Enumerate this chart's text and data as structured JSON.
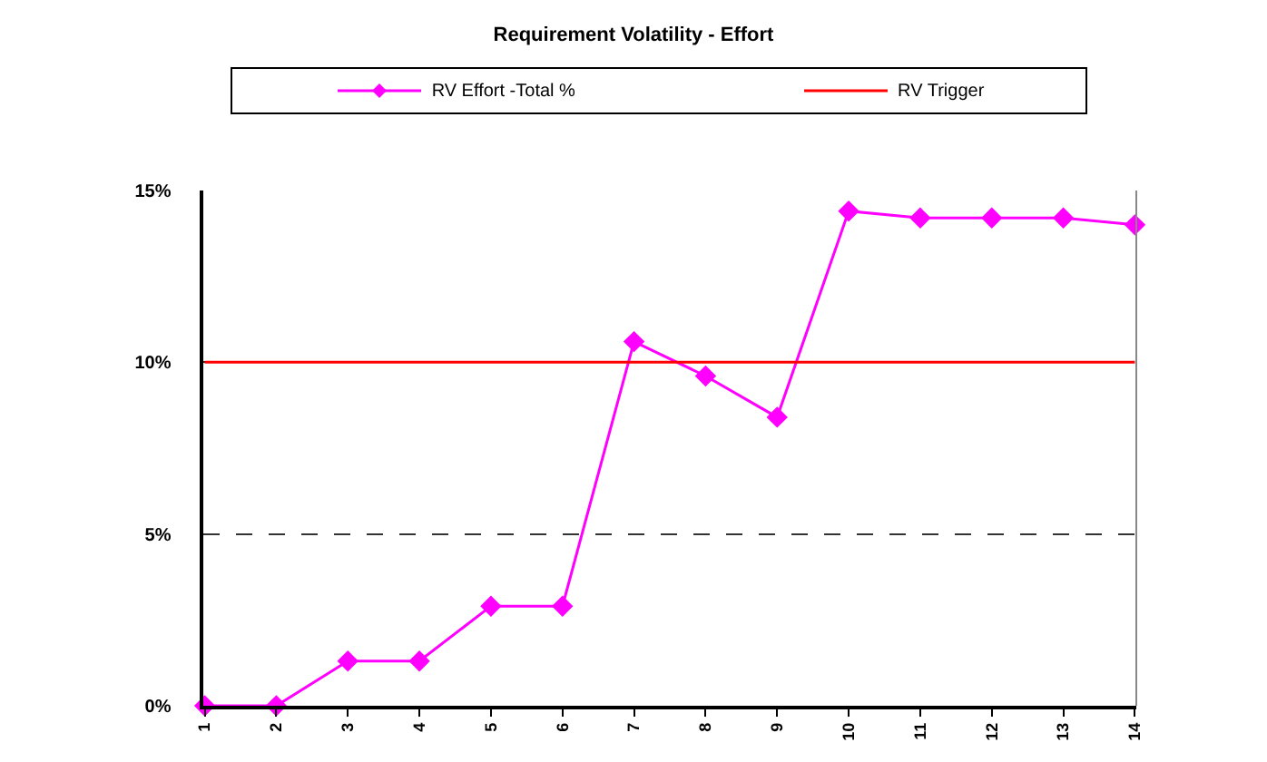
{
  "chart_data": {
    "type": "line",
    "title": "Requirement Volatility - Effort",
    "categories": [
      "1",
      "2",
      "3",
      "4",
      "5",
      "6",
      "7",
      "8",
      "9",
      "10",
      "11",
      "12",
      "13",
      "14"
    ],
    "series": [
      {
        "name": "RV Effort -Total %",
        "color": "#ff00ff",
        "marker": "diamond",
        "values": [
          0,
          0,
          1.3,
          1.3,
          2.9,
          2.9,
          10.6,
          9.6,
          8.4,
          14.4,
          14.2,
          14.2,
          14.2,
          14.0
        ]
      },
      {
        "name": "RV Trigger",
        "color": "#ff0000",
        "marker": "none",
        "values": [
          10,
          10,
          10,
          10,
          10,
          10,
          10,
          10,
          10,
          10,
          10,
          10,
          10,
          10
        ]
      }
    ],
    "ylim": [
      0,
      15
    ],
    "yticks": [
      {
        "value": 0,
        "label": "0%"
      },
      {
        "value": 5,
        "label": "5%"
      },
      {
        "value": 10,
        "label": "10%"
      },
      {
        "value": 15,
        "label": "15%"
      }
    ],
    "grid": "y",
    "line_style": "solid",
    "legend": "top"
  }
}
